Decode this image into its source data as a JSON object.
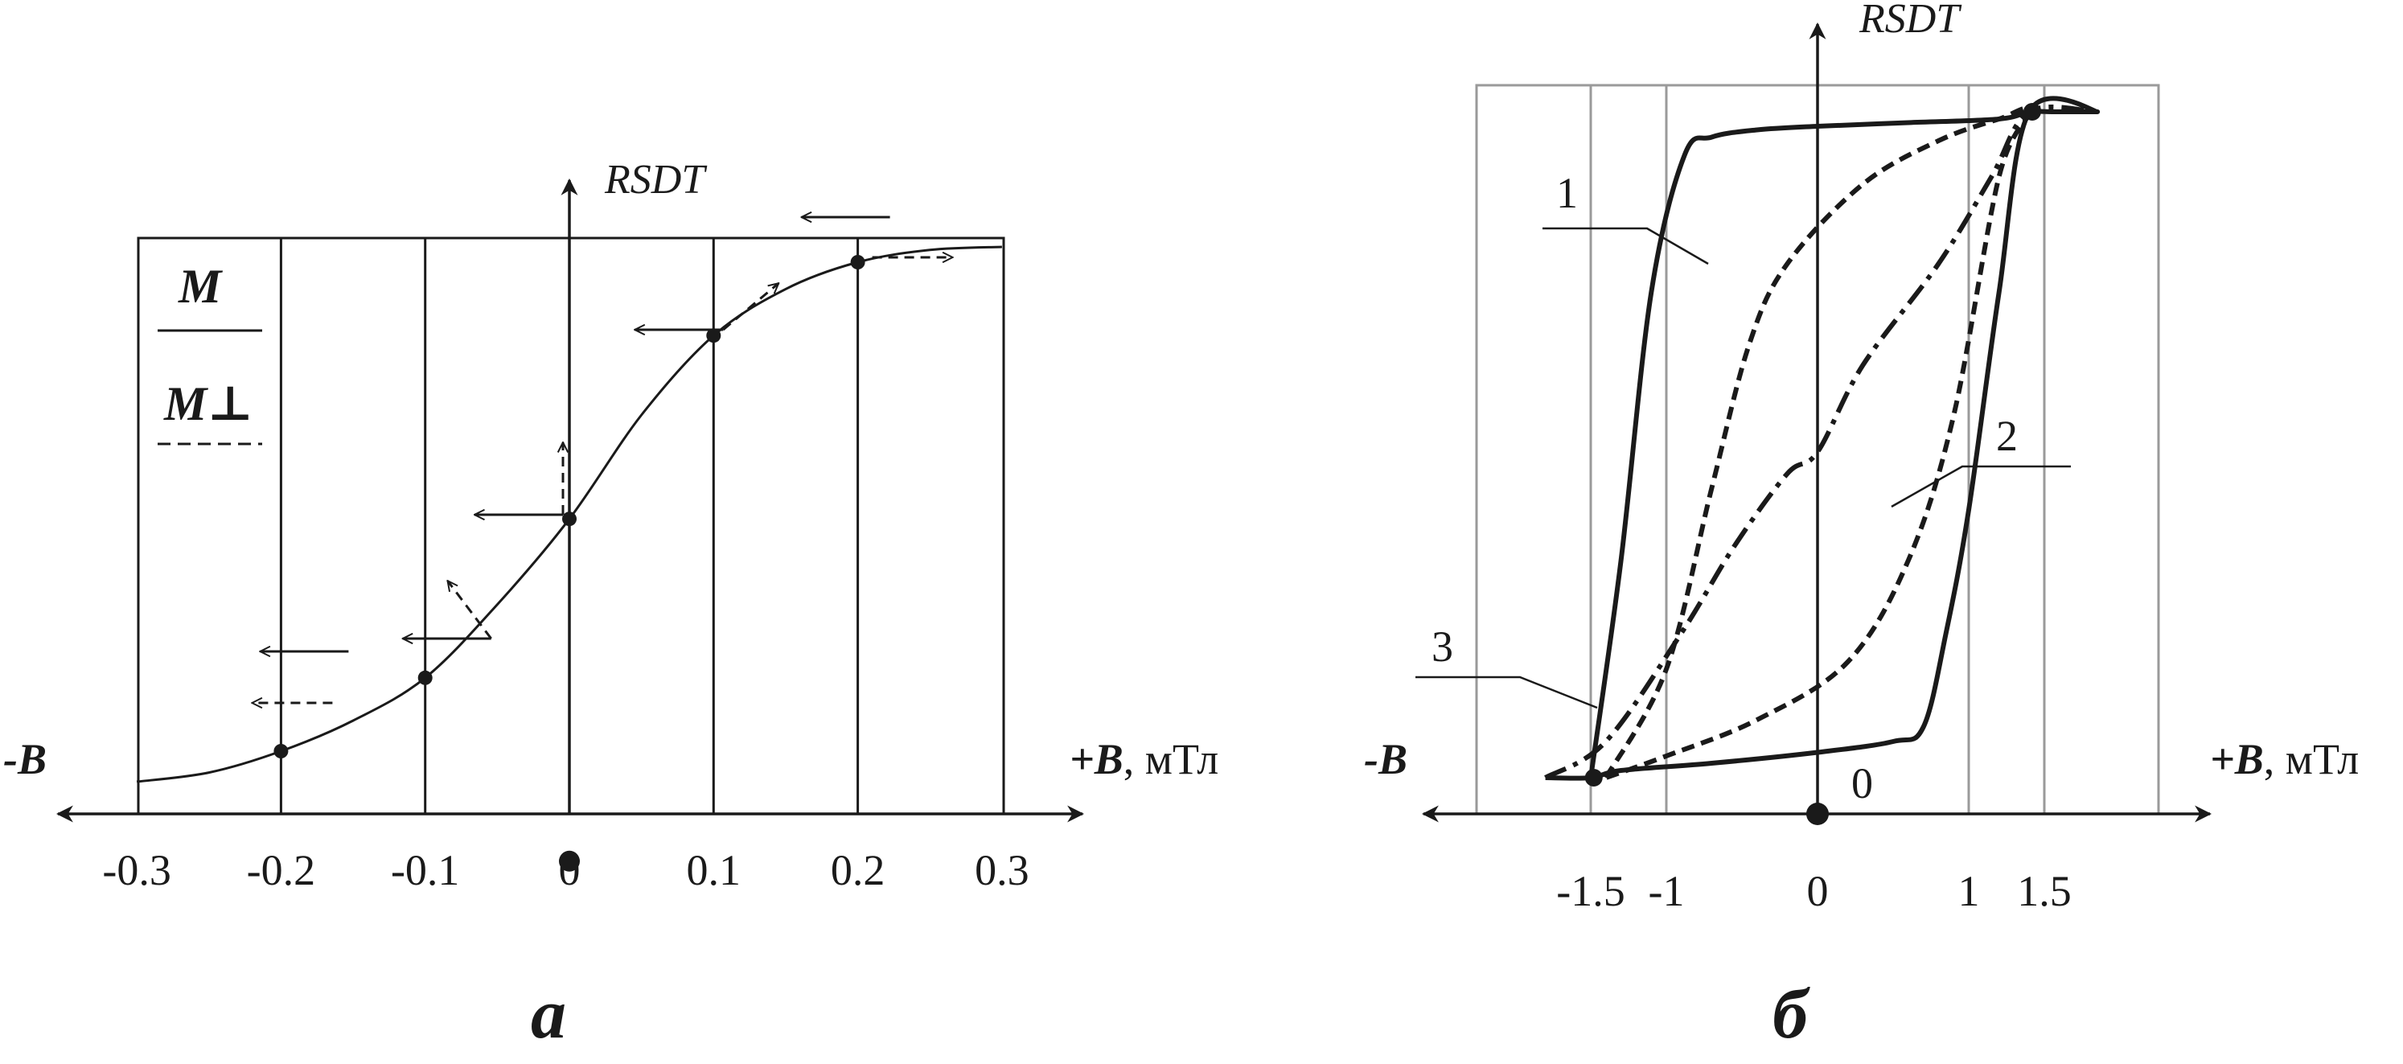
{
  "chart_data": [
    {
      "type": "line",
      "panel_label": "а",
      "ylabel": "RSDT",
      "xlabel_neg": "-B",
      "xlabel_pos": "+B",
      "xlabel_unit": ", мТл",
      "xlim": [
        -0.3,
        0.3
      ],
      "x_ticks": [
        -0.3,
        -0.2,
        -0.1,
        0,
        0.1,
        0.2,
        0.3
      ],
      "x_tick_labels": [
        "-0.3",
        "-0.2",
        "-0.1",
        "0",
        "0.1",
        "0.2",
        "0.3"
      ],
      "grid": true,
      "legend": {
        "placement": "top-left",
        "entries": [
          {
            "label": "M",
            "style": "solid"
          },
          {
            "label": "M⊥",
            "style": "dashed"
          }
        ]
      },
      "series": [
        {
          "style": "solid",
          "points": [
            [
              -0.3,
              0.05
            ],
            [
              -0.25,
              0.065
            ],
            [
              -0.2,
              0.1
            ],
            [
              -0.15,
              0.15
            ],
            [
              -0.1,
              0.22
            ],
            [
              -0.05,
              0.34
            ],
            [
              0,
              0.48
            ],
            [
              0.05,
              0.65
            ],
            [
              0.1,
              0.78
            ],
            [
              0.15,
              0.856
            ],
            [
              0.2,
              0.9
            ],
            [
              0.25,
              0.92
            ],
            [
              0.3,
              0.925
            ]
          ]
        }
      ],
      "markers": [
        {
          "x": -0.2,
          "y": 0.1
        },
        {
          "x": -0.1,
          "y": 0.22
        },
        {
          "x": 0,
          "y": 0.48
        },
        {
          "x": 0.1,
          "y": 0.78
        },
        {
          "x": 0.2,
          "y": 0.9
        },
        {
          "x": 0,
          "y": -0.08
        }
      ],
      "magnetization_arrows": [
        {
          "x": -0.2,
          "M_angle_deg": 180,
          "Mperp_angle_deg": 180
        },
        {
          "x": -0.1,
          "M_angle_deg": 180,
          "Mperp_angle_deg": 127
        },
        {
          "x": 0,
          "M_angle_deg": 180,
          "Mperp_angle_deg": 90
        },
        {
          "x": 0.1,
          "M_angle_deg": 180,
          "Mperp_angle_deg": 40
        },
        {
          "x": 0.2,
          "M_angle_deg": 180,
          "Mperp_angle_deg": 0
        }
      ]
    },
    {
      "type": "line",
      "panel_label": "б",
      "ylabel": "RSDT",
      "xlabel_neg": "-B",
      "xlabel_pos": "+B",
      "xlabel_unit": ", мТл",
      "xlim": [
        -2.0,
        2.0
      ],
      "x_ticks": [
        -1.5,
        -1,
        0,
        1,
        1.5
      ],
      "x_tick_labels": [
        "-1.5",
        "-1",
        "0",
        "1",
        "1.5"
      ],
      "origin_label": "0",
      "grid": true,
      "grid_lines_x": [
        -1.5,
        -1,
        0,
        1,
        1.5
      ],
      "series": [
        {
          "name": "1",
          "style": "solid-thick",
          "points": [
            [
              -1.5,
              0.05
            ],
            [
              -1.3,
              0.35
            ],
            [
              -1.1,
              0.72
            ],
            [
              -0.88,
              0.91
            ],
            [
              -0.7,
              0.935
            ],
            [
              -0.4,
              0.945
            ],
            [
              0,
              0.95
            ],
            [
              0.6,
              0.955
            ],
            [
              1.2,
              0.96
            ],
            [
              1.4,
              0.97
            ],
            [
              1.55,
              0.97
            ],
            [
              1.85,
              0.97
            ],
            [
              1.4,
              0.97
            ],
            [
              1.2,
              0.72
            ],
            [
              1.0,
              0.42
            ],
            [
              0.85,
              0.25
            ],
            [
              0.7,
              0.12
            ],
            [
              0.5,
              0.1
            ],
            [
              0,
              0.085
            ],
            [
              -0.7,
              0.07
            ],
            [
              -1.3,
              0.06
            ],
            [
              -1.5,
              0.05
            ],
            [
              -1.8,
              0.05
            ]
          ]
        },
        {
          "name": "2",
          "style": "dashed",
          "points": [
            [
              -1.4,
              0.05
            ],
            [
              -1.0,
              0.2
            ],
            [
              -0.7,
              0.45
            ],
            [
              -0.45,
              0.65
            ],
            [
              -0.2,
              0.76
            ],
            [
              0.3,
              0.87
            ],
            [
              0.8,
              0.93
            ],
            [
              1.2,
              0.96
            ],
            [
              1.4,
              0.97
            ],
            [
              1.2,
              0.88
            ],
            [
              0.9,
              0.55
            ],
            [
              0.6,
              0.35
            ],
            [
              0.2,
              0.21
            ],
            [
              -0.4,
              0.13
            ],
            [
              -1.0,
              0.08
            ],
            [
              -1.4,
              0.05
            ]
          ]
        },
        {
          "name": "3",
          "style": "dash-dot",
          "points": [
            [
              -1.8,
              0.05
            ],
            [
              -1.4,
              0.1
            ],
            [
              -0.9,
              0.25
            ],
            [
              -0.55,
              0.37
            ],
            [
              -0.2,
              0.47
            ],
            [
              0,
              0.5
            ],
            [
              0.3,
              0.62
            ],
            [
              0.8,
              0.76
            ],
            [
              1.15,
              0.88
            ],
            [
              1.4,
              0.97
            ],
            [
              1.85,
              0.97
            ]
          ]
        }
      ],
      "markers": [
        {
          "x": -1.48,
          "y": 0.05
        },
        {
          "x": 1.42,
          "y": 0.97
        },
        {
          "x": 0,
          "y": -0.1
        }
      ],
      "curve_labels": [
        "1",
        "2",
        "3"
      ]
    }
  ]
}
